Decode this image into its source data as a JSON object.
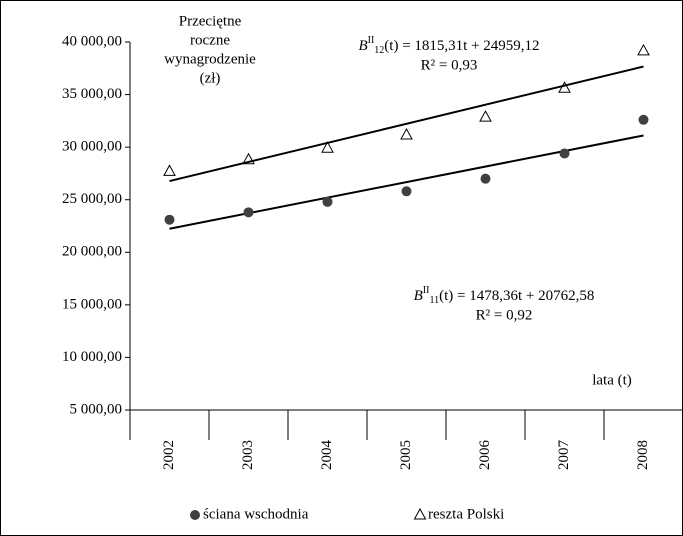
{
  "chart_data": {
    "type": "scatter",
    "y_label": [
      "Przeciętne",
      "roczne",
      "wynagrodzenie",
      "(zł)"
    ],
    "x_label": "lata (t)",
    "categories": [
      "2002",
      "2003",
      "2004",
      "2005",
      "2006",
      "2007",
      "2008"
    ],
    "ylim": [
      5000,
      40000
    ],
    "yticks": [
      {
        "value": 5000,
        "label": "5 000,00"
      },
      {
        "value": 10000,
        "label": "10 000,00"
      },
      {
        "value": 15000,
        "label": "15 000,00"
      },
      {
        "value": 20000,
        "label": "20 000,00"
      },
      {
        "value": 25000,
        "label": "25 000,00"
      },
      {
        "value": 30000,
        "label": "30 000,00"
      },
      {
        "value": 35000,
        "label": "35 000,00"
      },
      {
        "value": 40000,
        "label": "40 000,00"
      }
    ],
    "series": [
      {
        "name": "ściana wschodnia",
        "marker": "circle",
        "color": "#404040",
        "values": [
          23100,
          23800,
          24800,
          25800,
          27000,
          29400,
          32600
        ],
        "trend": {
          "slope": 1478.36,
          "intercept": 20762.58,
          "prefix": "B",
          "sup": "II",
          "sub": "11",
          "formula": "(t) = 1478,36t + 20762,58",
          "r2": "R² = 0,92"
        }
      },
      {
        "name": "reszta Polski",
        "marker": "triangle",
        "color": "#000000",
        "values": [
          27700,
          28800,
          29900,
          31150,
          32850,
          35600,
          39150
        ],
        "trend": {
          "slope": 1815.31,
          "intercept": 24959.12,
          "prefix": "B",
          "sup": "II",
          "sub": "12",
          "formula": "(t) = 1815,31t + 24959,12",
          "r2": "R² = 0,93"
        }
      }
    ]
  }
}
